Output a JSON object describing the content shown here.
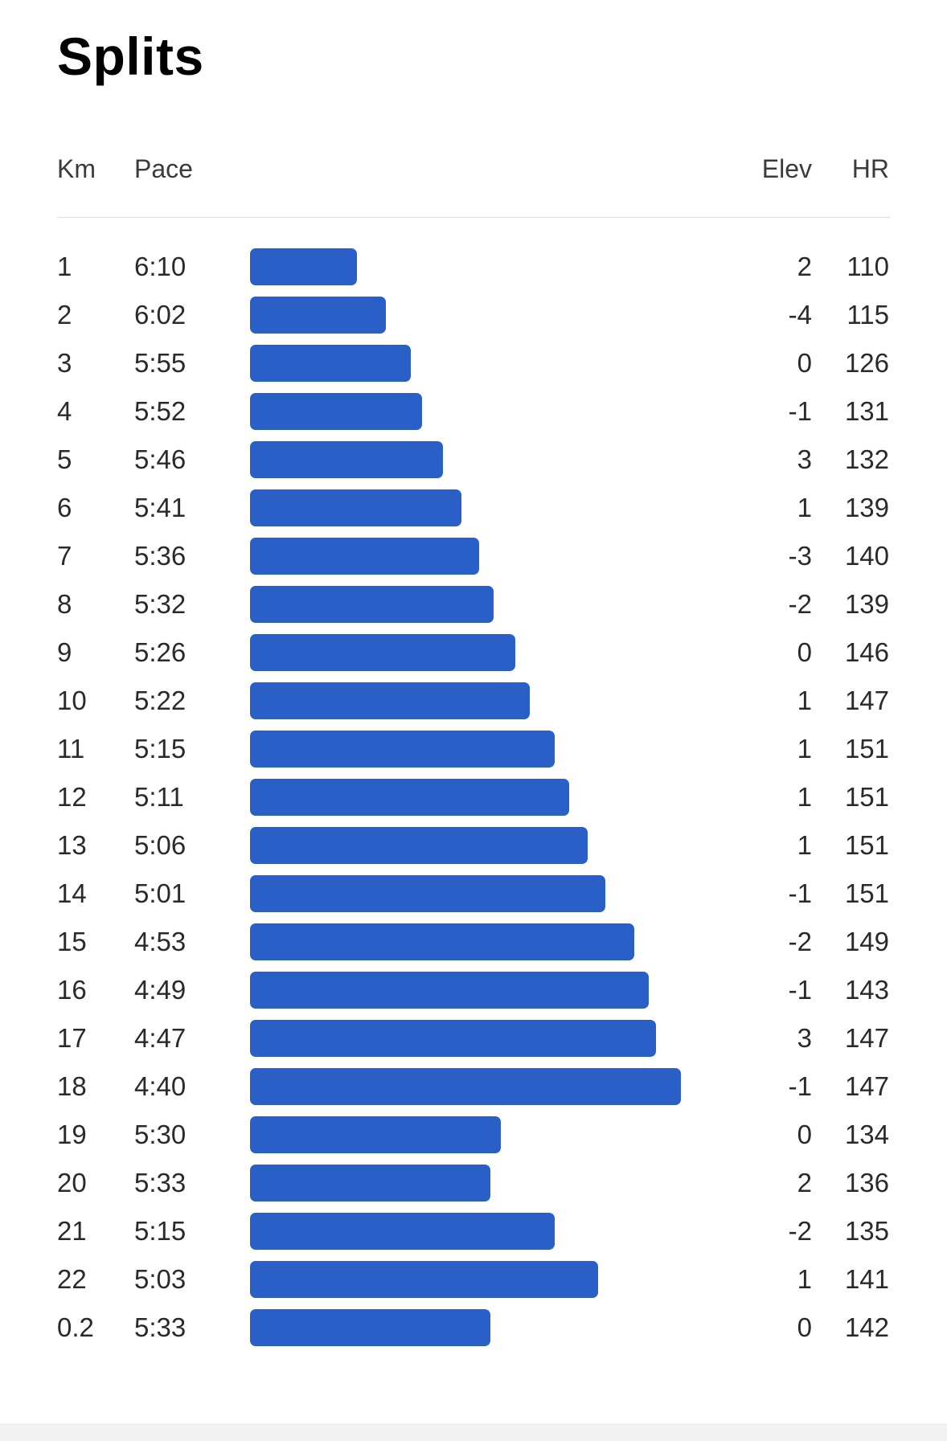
{
  "title": "Splits",
  "headers": {
    "km": "Km",
    "pace": "Pace",
    "elev": "Elev",
    "hr": "HR"
  },
  "colors": {
    "bar": "#2a5fc8",
    "divider": "#dcdcdc",
    "text": "#2a2a2a"
  },
  "chart_data": {
    "type": "bar",
    "orientation": "horizontal",
    "title": "Splits",
    "value_field": "Pace",
    "rows": [
      {
        "km": "1",
        "pace": "6:10",
        "elev": "2",
        "hr": "110"
      },
      {
        "km": "2",
        "pace": "6:02",
        "elev": "-4",
        "hr": "115"
      },
      {
        "km": "3",
        "pace": "5:55",
        "elev": "0",
        "hr": "126"
      },
      {
        "km": "4",
        "pace": "5:52",
        "elev": "-1",
        "hr": "131"
      },
      {
        "km": "5",
        "pace": "5:46",
        "elev": "3",
        "hr": "132"
      },
      {
        "km": "6",
        "pace": "5:41",
        "elev": "1",
        "hr": "139"
      },
      {
        "km": "7",
        "pace": "5:36",
        "elev": "-3",
        "hr": "140"
      },
      {
        "km": "8",
        "pace": "5:32",
        "elev": "-2",
        "hr": "139"
      },
      {
        "km": "9",
        "pace": "5:26",
        "elev": "0",
        "hr": "146"
      },
      {
        "km": "10",
        "pace": "5:22",
        "elev": "1",
        "hr": "147"
      },
      {
        "km": "11",
        "pace": "5:15",
        "elev": "1",
        "hr": "151"
      },
      {
        "km": "12",
        "pace": "5:11",
        "elev": "1",
        "hr": "151"
      },
      {
        "km": "13",
        "pace": "5:06",
        "elev": "1",
        "hr": "151"
      },
      {
        "km": "14",
        "pace": "5:01",
        "elev": "-1",
        "hr": "151"
      },
      {
        "km": "15",
        "pace": "4:53",
        "elev": "-2",
        "hr": "149"
      },
      {
        "km": "16",
        "pace": "4:49",
        "elev": "-1",
        "hr": "143"
      },
      {
        "km": "17",
        "pace": "4:47",
        "elev": "3",
        "hr": "147"
      },
      {
        "km": "18",
        "pace": "4:40",
        "elev": "-1",
        "hr": "147"
      },
      {
        "km": "19",
        "pace": "5:30",
        "elev": "0",
        "hr": "134"
      },
      {
        "km": "20",
        "pace": "5:33",
        "elev": "2",
        "hr": "136"
      },
      {
        "km": "21",
        "pace": "5:15",
        "elev": "-2",
        "hr": "135"
      },
      {
        "km": "22",
        "pace": "5:03",
        "elev": "1",
        "hr": "141"
      },
      {
        "km": "0.2",
        "pace": "5:33",
        "elev": "0",
        "hr": "142"
      }
    ]
  }
}
